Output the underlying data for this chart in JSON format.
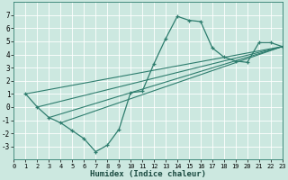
{
  "xlabel": "Humidex (Indice chaleur)",
  "bg_color": "#cce8e0",
  "line_color": "#2e7d6e",
  "grid_color": "#ffffff",
  "x_data": [
    1,
    2,
    3,
    4,
    5,
    6,
    7,
    8,
    9,
    10,
    11,
    12,
    13,
    14,
    15,
    16,
    17,
    18,
    19,
    20,
    21,
    22,
    23
  ],
  "y_data": [
    1.0,
    0.0,
    -0.8,
    -1.2,
    -1.8,
    -2.4,
    -3.4,
    -2.9,
    -1.7,
    1.1,
    1.2,
    3.3,
    5.2,
    6.9,
    6.6,
    6.5,
    4.5,
    3.8,
    3.5,
    3.4,
    4.9,
    4.9,
    4.6
  ],
  "xlim": [
    0,
    23
  ],
  "ylim": [
    -4,
    8
  ],
  "yticks": [
    -3,
    -2,
    -1,
    0,
    1,
    2,
    3,
    4,
    5,
    6,
    7
  ],
  "xticks": [
    0,
    1,
    2,
    3,
    4,
    5,
    6,
    7,
    8,
    9,
    10,
    11,
    12,
    13,
    14,
    15,
    16,
    17,
    18,
    19,
    20,
    21,
    22,
    23
  ],
  "straight_lines": [
    {
      "x1": 1,
      "y1": 1.0,
      "x2": 23,
      "y2": 4.6
    },
    {
      "x1": 2,
      "y1": 0.0,
      "x2": 23,
      "y2": 4.6
    },
    {
      "x1": 3,
      "y1": -0.8,
      "x2": 23,
      "y2": 4.6
    },
    {
      "x1": 4,
      "y1": -1.2,
      "x2": 23,
      "y2": 4.6
    }
  ]
}
